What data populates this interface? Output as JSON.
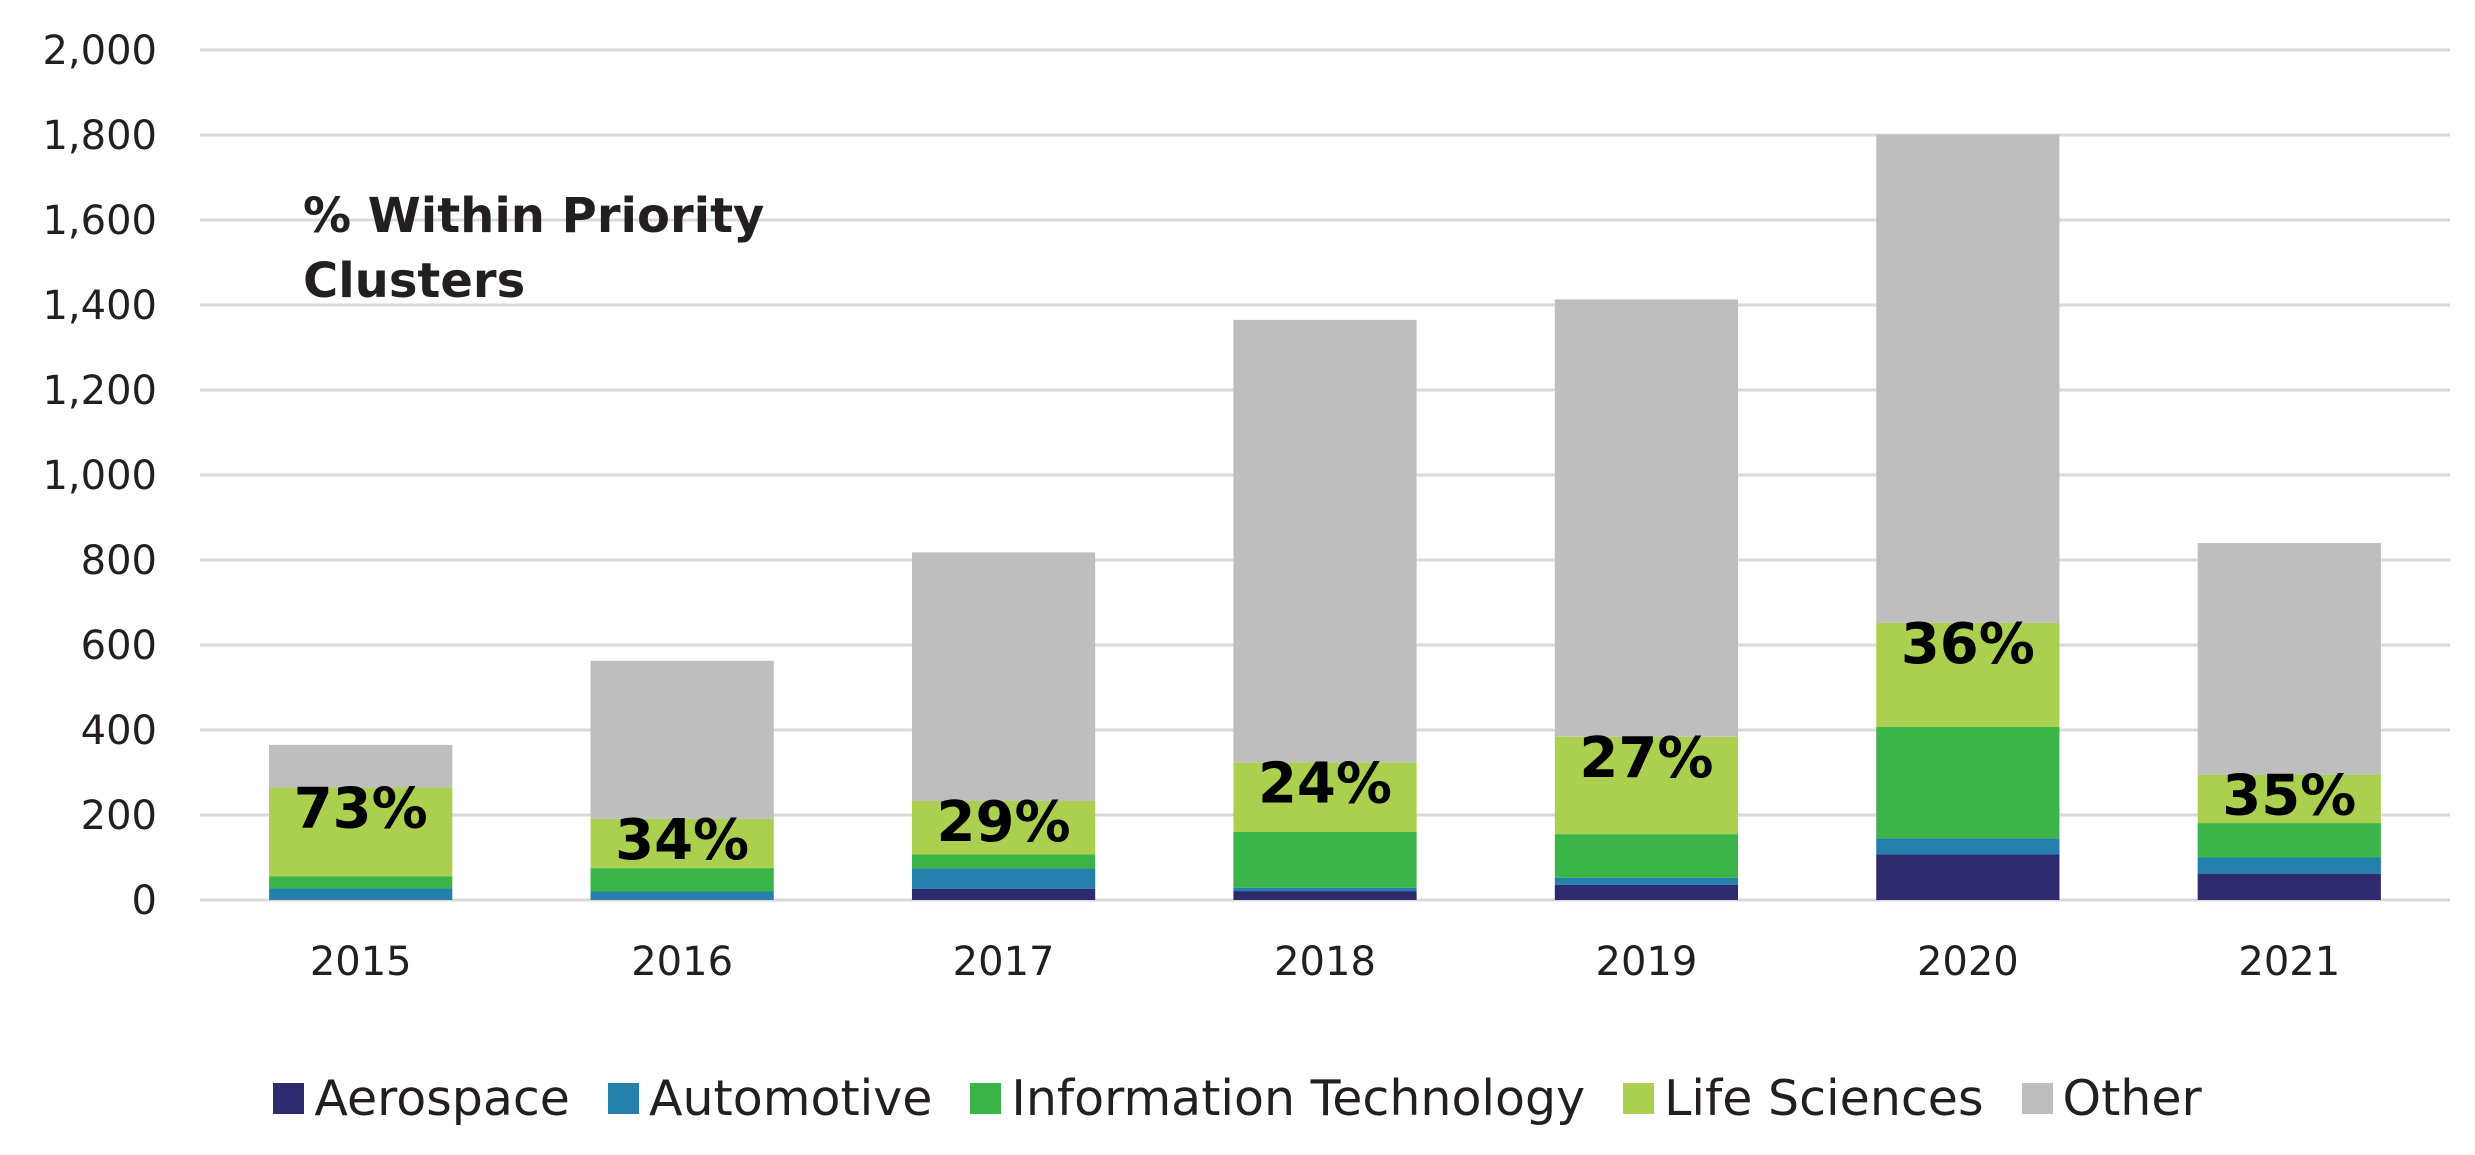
{
  "chart_data": {
    "type": "bar",
    "stacked": true,
    "title": "",
    "annotation": "% Within Priority Clusters",
    "annotation_lines": [
      "% Within Priority",
      "Clusters"
    ],
    "xlabel": "",
    "ylabel": "",
    "categories": [
      "2015",
      "2016",
      "2017",
      "2018",
      "2019",
      "2020",
      "2021"
    ],
    "ylim": [
      0,
      2000
    ],
    "yticks": [
      0,
      200,
      400,
      600,
      800,
      1000,
      1200,
      1400,
      1600,
      1800,
      2000
    ],
    "ytick_labels": [
      "0",
      "200",
      "400",
      "600",
      "800",
      "1,000",
      "1,200",
      "1,400",
      "1,600",
      "1,800",
      "2,000"
    ],
    "grid": true,
    "legend_position": "bottom",
    "series": [
      {
        "name": "Aerospace",
        "color": "#2E2A6E",
        "values": [
          0,
          0,
          26,
          21,
          36,
          107,
          62
        ]
      },
      {
        "name": "Automotive",
        "color": "#2580AC",
        "values": [
          27,
          20,
          48,
          8,
          16,
          38,
          38
        ]
      },
      {
        "name": "Information Technology",
        "color": "#3BB54A",
        "values": [
          29,
          55,
          33,
          131,
          103,
          262,
          81
        ]
      },
      {
        "name": "Life Sciences",
        "color": "#ABD04F",
        "values": [
          209,
          116,
          126,
          164,
          229,
          245,
          114
        ]
      },
      {
        "name": "Other",
        "color": "#BEBEBE",
        "values": [
          100,
          372,
          585,
          1041,
          1029,
          1149,
          545
        ]
      }
    ],
    "data_labels": [
      "73%",
      "34%",
      "29%",
      "24%",
      "27%",
      "36%",
      "35%"
    ]
  }
}
